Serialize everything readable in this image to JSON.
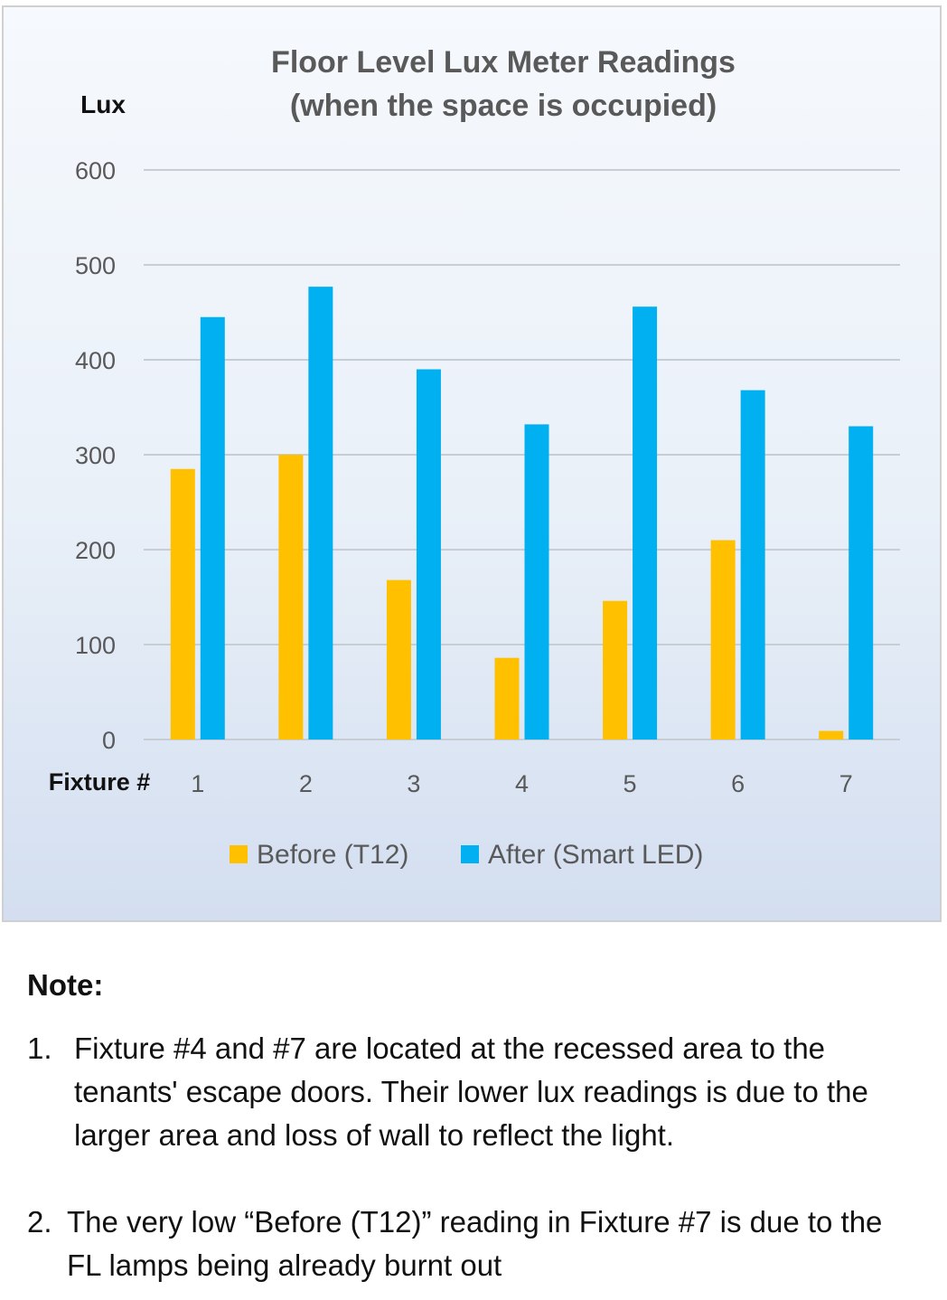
{
  "chart_data": {
    "type": "bar",
    "title_lines": [
      "Floor Level Lux Meter Readings",
      "(when the space is occupied)"
    ],
    "ylabel": "Lux",
    "xlabel": "Fixture #",
    "categories": [
      "1",
      "2",
      "3",
      "4",
      "5",
      "6",
      "7"
    ],
    "ylim": [
      0,
      600
    ],
    "yticks": [
      0,
      100,
      200,
      300,
      400,
      500,
      600
    ],
    "grid": true,
    "legend_position": "bottom",
    "series": [
      {
        "name": "Before (T12)",
        "color": "#ffc000",
        "values": [
          285,
          300,
          168,
          86,
          146,
          210,
          9
        ]
      },
      {
        "name": "After (Smart LED)",
        "color": "#00b0f0",
        "values": [
          445,
          477,
          390,
          332,
          456,
          368,
          330
        ]
      }
    ]
  },
  "notes": {
    "heading": "Note:",
    "items": [
      {
        "number": "1.",
        "text": "Fixture #4 and #7 are located at the recessed area to the tenants' escape doors. Their lower lux readings is due to the larger area and loss of wall to reflect the light."
      },
      {
        "number": "2.",
        "text": "The very low “Before (T12)” reading in Fixture #7 is due to the FL lamps being already burnt out"
      }
    ]
  }
}
